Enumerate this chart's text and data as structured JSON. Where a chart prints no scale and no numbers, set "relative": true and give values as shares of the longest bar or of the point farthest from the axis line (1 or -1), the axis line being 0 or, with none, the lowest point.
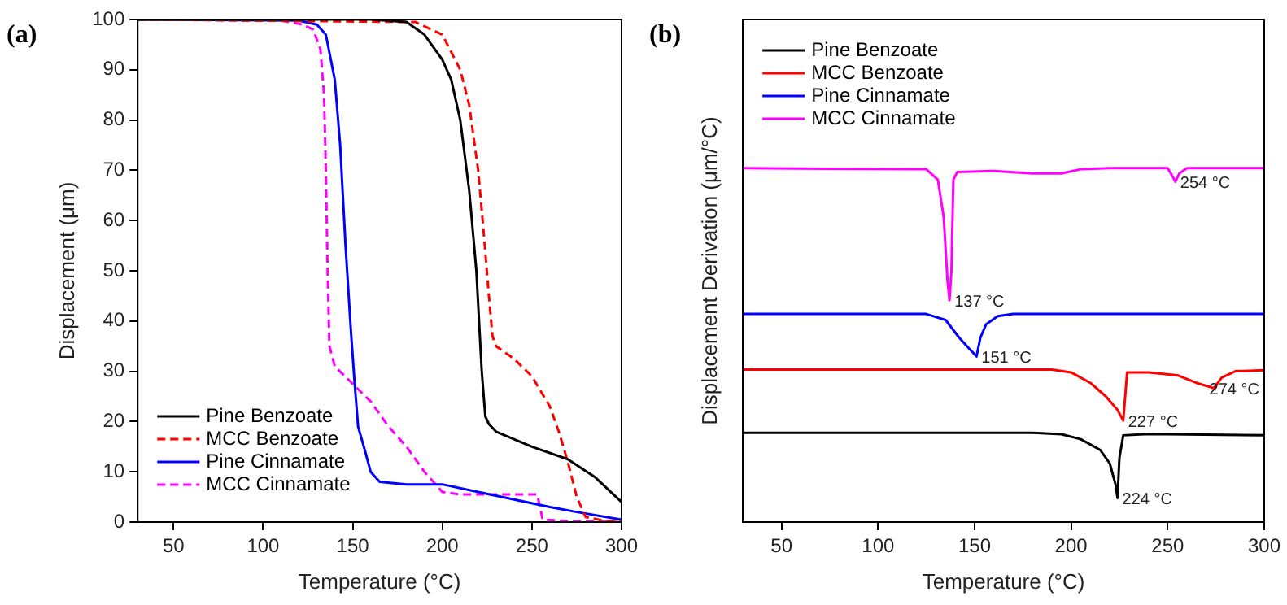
{
  "chart_data": [
    {
      "type": "line",
      "title": "(a)",
      "xlabel": "Temperature (°C)",
      "ylabel": "Displacement (μm)",
      "xlim": [
        30,
        300
      ],
      "xticks": [
        50,
        100,
        150,
        200,
        250,
        300
      ],
      "ylim": [
        0,
        100
      ],
      "yticks": [
        0,
        10,
        20,
        30,
        40,
        50,
        60,
        70,
        80,
        90,
        100
      ],
      "grid": false,
      "legend": "bottom left",
      "marker": "none",
      "series": [
        {
          "name": "Pine Benzoate",
          "color": "#000000",
          "line_style": "solid",
          "x": [
            30,
            160,
            180,
            190,
            200,
            205,
            210,
            215,
            219,
            222,
            224,
            226,
            230,
            250,
            270,
            285,
            300
          ],
          "values": [
            100,
            100,
            99.5,
            97,
            92,
            88,
            80,
            66,
            50,
            30,
            21,
            19.5,
            18,
            15,
            12.5,
            9,
            4
          ]
        },
        {
          "name": "MCC Benzoate",
          "color": "#ff0000",
          "line_style": "dashed",
          "x": [
            30,
            185,
            200,
            210,
            215,
            220,
            223,
            226,
            228,
            230,
            240,
            250,
            260,
            265,
            270,
            275,
            280,
            290,
            300
          ],
          "values": [
            100,
            99.5,
            97,
            90,
            83,
            70,
            58,
            45,
            37,
            35,
            32.5,
            29,
            23,
            18,
            12,
            5,
            1,
            0.3,
            0
          ]
        },
        {
          "name": "Pine Cinnamate",
          "color": "#0000ff",
          "line_style": "solid",
          "x": [
            30,
            120,
            130,
            135,
            140,
            143,
            146,
            149,
            151,
            153,
            157,
            160,
            165,
            180,
            200,
            220,
            240,
            260,
            275,
            300
          ],
          "values": [
            100,
            99.8,
            99,
            97,
            88,
            75,
            55,
            38,
            28,
            19,
            14,
            10,
            8,
            7.5,
            7.5,
            6,
            4.5,
            3,
            2,
            0.5
          ]
        },
        {
          "name": "MCC Cinnamate",
          "color": "#ff00ff",
          "line_style": "dashed",
          "x": [
            30,
            110,
            122,
            128,
            132,
            134,
            135,
            136,
            137,
            140,
            150,
            160,
            170,
            180,
            190,
            200,
            210,
            253,
            256,
            270,
            300
          ],
          "values": [
            100,
            99.8,
            99,
            98,
            94,
            85,
            70,
            50,
            35,
            31,
            27.5,
            24,
            19,
            15,
            10,
            6,
            5.5,
            5.5,
            0.5,
            0.2,
            0
          ]
        }
      ]
    },
    {
      "type": "line",
      "title": "(b)",
      "xlabel": "Temperature (°C)",
      "ylabel": "Displacement Derivation (μm/°C)",
      "relative": true,
      "xlim": [
        30,
        300
      ],
      "xticks": [
        50,
        100,
        150,
        200,
        250,
        300
      ],
      "grid": false,
      "legend": "top left",
      "marker": "none",
      "annotations": [
        {
          "text": "137 °C",
          "x": 137,
          "y": 0.627
        },
        {
          "text": "254 °C",
          "x": 254,
          "y": 0.962
        },
        {
          "text": "151 °C",
          "x": 151,
          "y": 0.468
        },
        {
          "text": "227 °C",
          "x": 227,
          "y": 0.287
        },
        {
          "text": "274 °C",
          "x": 274,
          "y": 0.378
        },
        {
          "text": "224 °C",
          "x": 224,
          "y": 0.068
        }
      ],
      "series": [
        {
          "name": "Pine Benzoate",
          "color": "#000000",
          "x": [
            30,
            180,
            195,
            205,
            215,
            220,
            223,
            224,
            225,
            227,
            240,
            300
          ],
          "values": [
            0.252,
            0.252,
            0.248,
            0.234,
            0.204,
            0.166,
            0.106,
            0.068,
            0.181,
            0.245,
            0.249,
            0.245
          ]
        },
        {
          "name": "MCC Benzoate",
          "color": "#ff0000",
          "x": [
            30,
            190,
            200,
            210,
            218,
            224,
            227,
            229,
            240,
            255,
            265,
            270,
            274,
            278,
            285,
            300
          ],
          "values": [
            0.431,
            0.431,
            0.423,
            0.393,
            0.355,
            0.317,
            0.287,
            0.423,
            0.423,
            0.415,
            0.393,
            0.385,
            0.378,
            0.408,
            0.426,
            0.429
          ]
        },
        {
          "name": "Pine Cinnamate",
          "color": "#0000ff",
          "x": [
            30,
            125,
            135,
            142,
            147,
            151,
            153,
            156,
            162,
            170,
            300
          ],
          "values": [
            0.588,
            0.588,
            0.571,
            0.521,
            0.491,
            0.468,
            0.521,
            0.559,
            0.582,
            0.588,
            0.588
          ]
        },
        {
          "name": "MCC Cinnamate",
          "color": "#ff00ff",
          "x": [
            30,
            125,
            131,
            134,
            136,
            137,
            138,
            139,
            141,
            160,
            180,
            195,
            205,
            220,
            250,
            252,
            254,
            256,
            260,
            300
          ],
          "values": [
            1,
            0.997,
            0.967,
            0.861,
            0.68,
            0.627,
            0.71,
            0.967,
            0.989,
            0.992,
            0.985,
            0.985,
            0.997,
            1,
            1,
            0.982,
            0.962,
            0.985,
            1,
            1
          ]
        }
      ]
    }
  ]
}
